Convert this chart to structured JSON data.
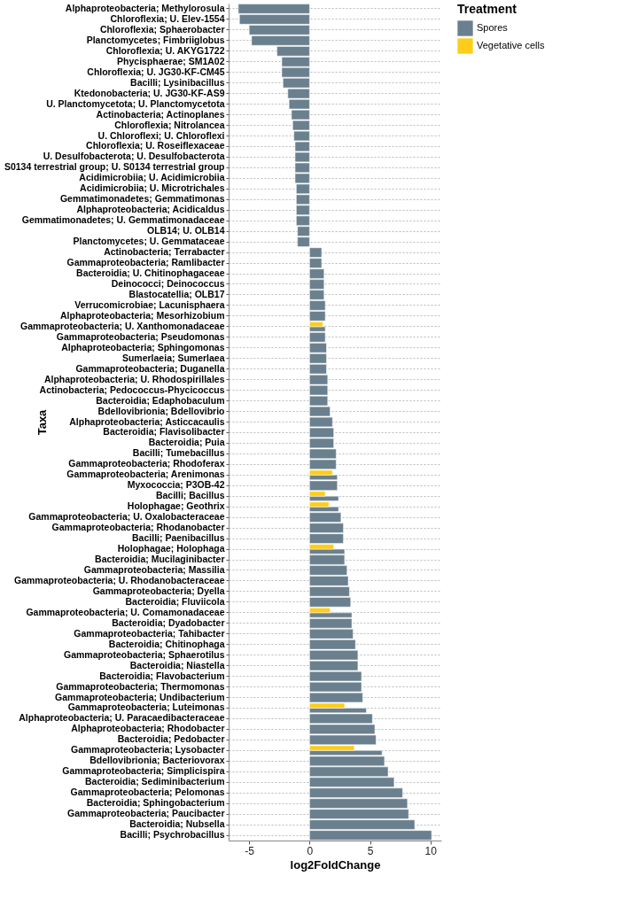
{
  "chart_data": {
    "type": "bar",
    "orientation": "horizontal",
    "xlabel": "log2FoldChange",
    "ylabel": "Taxa",
    "legend_title": "Treatment",
    "legend": "top right",
    "grid": "y",
    "xlim": [
      -6.7,
      10.9
    ],
    "xticks": [
      -5,
      0,
      5,
      10
    ],
    "categories": [
      "Alphaproteobacteria; Methylorosula",
      "Chloroflexia; U. Elev-1554",
      "Chloroflexia; Sphaerobacter",
      "Planctomycetes; Fimbriiglobus",
      "Chloroflexia; U. AKYG1722",
      "Phycisphaerae; SM1A02",
      "Chloroflexia; U. JG30-KF-CM45",
      "Bacilli; Lysinibacillus",
      "Ktedonobacteria; U. JG30-KF-AS9",
      "U. Planctomycetota; U. Planctomycetota",
      "Actinobacteria; Actinoplanes",
      "Chloroflexia; Nitrolancea",
      "U. Chloroflexi; U. Chloroflexi",
      "Chloroflexia; U. Roseiflexaceae",
      "U. Desulfobacterota; U. Desulfobacterota",
      "S0134 terrestrial group; U. S0134 terrestrial group",
      "Acidimicrobiia; U. Acidimicrobiia",
      "Acidimicrobiia; U. Microtrichales",
      "Gemmatimonadetes; Gemmatimonas",
      "Alphaproteobacteria; Acidicaldus",
      "Gemmatimonadetes; U. Gemmatimonadaceae",
      "OLB14; U. OLB14",
      "Planctomycetes; U. Gemmataceae",
      "Actinobacteria; Terrabacter",
      "Gammaproteobacteria; Ramlibacter",
      "Bacteroidia; U. Chitinophagaceae",
      "Deinococci; Deinococcus",
      "Blastocatellia; OLB17",
      "Verrucomicrobiae; Lacunisphaera",
      "Alphaproteobacteria; Mesorhizobium",
      "Gammaproteobacteria; U. Xanthomonadaceae",
      "Gammaproteobacteria; Pseudomonas",
      "Alphaproteobacteria; Sphingomonas",
      "Sumerlaeia; Sumerlaea",
      "Gammaproteobacteria; Duganella",
      "Alphaproteobacteria; U. Rhodospirillales",
      "Actinobacteria; Pedococcus-Phycicoccus",
      "Bacteroidia; Edaphobaculum",
      "Bdellovibrionia; Bdellovibrio",
      "Alphaproteobacteria; Asticcacaulis",
      "Bacteroidia; Flavisolibacter",
      "Bacteroidia; Puia",
      "Bacilli; Tumebacillus",
      "Gammaproteobacteria; Rhodoferax",
      "Gammaproteobacteria; Arenimonas",
      "Myxococcia; P3OB-42",
      "Bacilli; Bacillus",
      "Holophagae; Geothrix",
      "Gammaproteobacteria; U. Oxalobacteraceae",
      "Gammaproteobacteria; Rhodanobacter",
      "Bacilli; Paenibacillus",
      "Holophagae; Holophaga",
      "Bacteroidia; Mucilaginibacter",
      "Gammaproteobacteria; Massilia",
      "Gammaproteobacteria; U. Rhodanobacteraceae",
      "Gammaproteobacteria; Dyella",
      "Bacteroidia; Fluviicola",
      "Gammaproteobacteria; U. Comamonadaceae",
      "Bacteroidia; Dyadobacter",
      "Gammaproteobacteria; Tahibacter",
      "Bacteroidia; Chitinophaga",
      "Gammaproteobacteria; Sphaerotilus",
      "Bacteroidia; Niastella",
      "Bacteroidia; Flavobacterium",
      "Gammaproteobacteria; Thermomonas",
      "Gammaproteobacteria; Undibacterium",
      "Gammaproteobacteria; Luteimonas",
      "Alphaproteobacteria; U. Paracaedibacteraceae",
      "Alphaproteobacteria; Rhodobacter",
      "Bacteroidia; Pedobacter",
      "Gammaproteobacteria; Lysobacter",
      "Bdellovibrionia; Bacteriovorax",
      "Gammaproteobacteria; Simplicispira",
      "Bacteroidia; Sediminibacterium",
      "Gammaproteobacteria; Pelomonas",
      "Bacteroidia; Sphingobacterium",
      "Gammaproteobacteria; Paucibacter",
      "Bacteroidia; Nubsella",
      "Bacilli; Psychrobacillus"
    ],
    "series": [
      {
        "name": "Spores",
        "color": "#6b808e",
        "values": [
          -5.9,
          -5.8,
          -5.0,
          -4.8,
          -2.7,
          -2.3,
          -2.3,
          -2.2,
          -1.8,
          -1.7,
          -1.5,
          -1.4,
          -1.3,
          -1.2,
          -1.2,
          -1.2,
          -1.2,
          -1.1,
          -1.1,
          -1.1,
          -1.1,
          -1.0,
          -1.0,
          1.0,
          1.0,
          1.2,
          1.2,
          1.2,
          1.3,
          1.3,
          1.3,
          1.3,
          1.4,
          1.4,
          1.4,
          1.5,
          1.5,
          1.5,
          1.7,
          1.9,
          2.0,
          2.0,
          2.2,
          2.2,
          2.3,
          2.3,
          2.4,
          2.4,
          2.6,
          2.8,
          2.8,
          2.9,
          2.9,
          3.1,
          3.2,
          3.3,
          3.4,
          3.5,
          3.5,
          3.6,
          3.8,
          4.0,
          4.0,
          4.3,
          4.3,
          4.4,
          4.7,
          5.2,
          5.4,
          5.5,
          6.0,
          6.2,
          6.5,
          7.0,
          7.7,
          8.1,
          8.2,
          8.7,
          10.1
        ]
      },
      {
        "name": "Vegetative cells",
        "color": "#fecd1a",
        "values": [
          null,
          null,
          null,
          null,
          null,
          null,
          null,
          null,
          null,
          null,
          null,
          null,
          null,
          null,
          null,
          null,
          null,
          null,
          null,
          null,
          null,
          null,
          null,
          null,
          null,
          null,
          null,
          null,
          null,
          null,
          1.1,
          null,
          null,
          null,
          null,
          null,
          null,
          null,
          null,
          null,
          null,
          null,
          null,
          null,
          1.9,
          null,
          1.3,
          1.6,
          null,
          null,
          null,
          2.0,
          null,
          null,
          null,
          null,
          null,
          1.7,
          null,
          null,
          null,
          null,
          null,
          null,
          null,
          null,
          2.9,
          null,
          null,
          null,
          3.7,
          null,
          null,
          null,
          null,
          null,
          null,
          null,
          null
        ]
      }
    ]
  }
}
